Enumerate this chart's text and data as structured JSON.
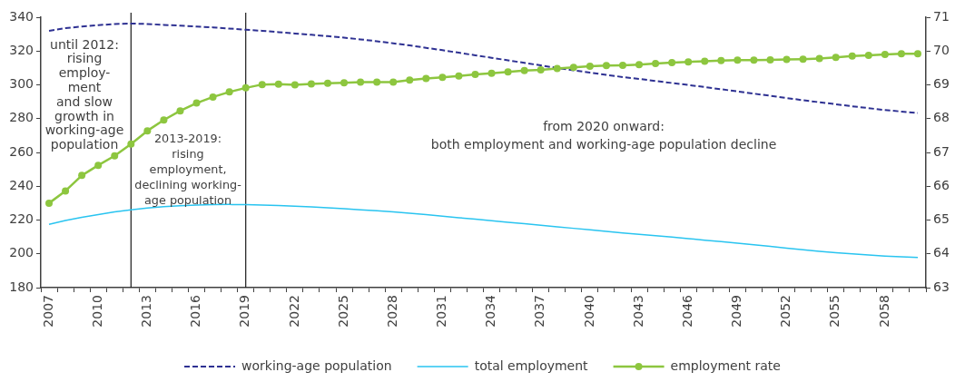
{
  "chart_data": {
    "type": "line",
    "x": [
      2007,
      2008,
      2009,
      2010,
      2011,
      2012,
      2013,
      2014,
      2015,
      2016,
      2017,
      2018,
      2019,
      2020,
      2021,
      2022,
      2023,
      2024,
      2025,
      2026,
      2027,
      2028,
      2029,
      2030,
      2031,
      2032,
      2033,
      2034,
      2035,
      2036,
      2037,
      2038,
      2039,
      2040,
      2041,
      2042,
      2043,
      2044,
      2045,
      2046,
      2047,
      2048,
      2049,
      2050,
      2051,
      2052,
      2053,
      2054,
      2055,
      2056,
      2057,
      2058,
      2059,
      2060
    ],
    "series": [
      {
        "name": "working-age population",
        "color": "#2e3192",
        "line_style": "dashed",
        "marker": "none",
        "values": [
          332.0,
          333.5,
          334.5,
          335.3,
          336.0,
          336.3,
          336.0,
          335.5,
          335.0,
          334.5,
          334.0,
          333.3,
          332.6,
          332.0,
          331.2,
          330.4,
          329.6,
          328.8,
          327.9,
          326.9,
          325.8,
          324.6,
          323.3,
          321.9,
          320.5,
          319.0,
          317.5,
          316.0,
          314.5,
          313.0,
          311.5,
          310.0,
          308.6,
          307.2,
          305.9,
          304.6,
          303.5,
          302.3,
          301.1,
          299.9,
          298.7,
          297.4,
          296.1,
          294.8,
          293.5,
          292.2,
          290.9,
          289.7,
          288.5,
          287.3,
          286.2,
          285.1,
          284.2,
          283.3
        ]
      },
      {
        "name": "total employment",
        "color": "#29c4f0",
        "line_style": "solid",
        "marker": "none",
        "values": [
          217.5,
          219.7,
          221.6,
          223.2,
          224.8,
          226.1,
          227.1,
          227.9,
          228.5,
          228.9,
          229.1,
          229.2,
          229.1,
          228.9,
          228.6,
          228.2,
          227.8,
          227.3,
          226.7,
          226.1,
          225.5,
          224.8,
          224.0,
          223.2,
          222.3,
          221.4,
          220.5,
          219.6,
          218.7,
          217.8,
          216.9,
          216.0,
          215.1,
          214.2,
          213.3,
          212.4,
          211.6,
          210.8,
          209.9,
          209.0,
          208.1,
          207.2,
          206.3,
          205.4,
          204.4,
          203.4,
          202.4,
          201.5,
          200.7,
          200.0,
          199.3,
          198.7,
          198.2,
          197.9
        ]
      },
      {
        "name": "employment rate",
        "color": "#8dc63f",
        "line_style": "solid",
        "marker": "circle",
        "axis": "y2",
        "values": [
          65.5,
          65.86,
          66.32,
          66.62,
          66.9,
          67.25,
          67.64,
          67.96,
          68.23,
          68.46,
          68.64,
          68.79,
          68.91,
          69.01,
          69.02,
          69.0,
          69.03,
          69.05,
          69.06,
          69.08,
          69.08,
          69.08,
          69.14,
          69.19,
          69.22,
          69.26,
          69.31,
          69.34,
          69.38,
          69.42,
          69.44,
          69.48,
          69.52,
          69.55,
          69.57,
          69.58,
          69.6,
          69.63,
          69.66,
          69.68,
          69.7,
          69.72,
          69.73,
          69.73,
          69.74,
          69.75,
          69.76,
          69.78,
          69.81,
          69.85,
          69.87,
          69.9,
          69.92,
          69.92
        ]
      }
    ],
    "xlim": [
      2006.5,
      2060.5
    ],
    "xticks": [
      {
        "value": 2006.5,
        "label": null
      },
      2007,
      {
        "value": 2007.5,
        "label": null
      },
      {
        "value": 2008.5,
        "label": null
      },
      {
        "value": 2009.5,
        "label": null
      },
      2010,
      {
        "value": 2010.5,
        "label": null
      },
      {
        "value": 2011.5,
        "label": null
      },
      {
        "value": 2012.5,
        "label": null
      },
      2013,
      {
        "value": 2013.5,
        "label": null
      },
      {
        "value": 2014.5,
        "label": null
      },
      {
        "value": 2015.5,
        "label": null
      },
      2016,
      {
        "value": 2016.5,
        "label": null
      },
      {
        "value": 2017.5,
        "label": null
      },
      {
        "value": 2018.5,
        "label": null
      },
      2019,
      {
        "value": 2019.5,
        "label": null
      },
      {
        "value": 2020.5,
        "label": null
      },
      {
        "value": 2021.5,
        "label": null
      },
      2022,
      {
        "value": 2022.5,
        "label": null
      },
      {
        "value": 2023.5,
        "label": null
      },
      {
        "value": 2024.5,
        "label": null
      },
      2025,
      {
        "value": 2025.5,
        "label": null
      },
      {
        "value": 2026.5,
        "label": null
      },
      {
        "value": 2027.5,
        "label": null
      },
      2028,
      {
        "value": 2028.5,
        "label": null
      },
      {
        "value": 2029.5,
        "label": null
      },
      {
        "value": 2030.5,
        "label": null
      },
      2031,
      {
        "value": 2031.5,
        "label": null
      },
      {
        "value": 2032.5,
        "label": null
      },
      {
        "value": 2033.5,
        "label": null
      },
      2034,
      {
        "value": 2034.5,
        "label": null
      },
      {
        "value": 2035.5,
        "label": null
      },
      {
        "value": 2036.5,
        "label": null
      },
      2037,
      {
        "value": 2037.5,
        "label": null
      },
      {
        "value": 2038.5,
        "label": null
      },
      {
        "value": 2039.5,
        "label": null
      },
      2040,
      {
        "value": 2040.5,
        "label": null
      },
      {
        "value": 2041.5,
        "label": null
      },
      {
        "value": 2042.5,
        "label": null
      },
      2043,
      {
        "value": 2043.5,
        "label": null
      },
      {
        "value": 2044.5,
        "label": null
      },
      {
        "value": 2045.5,
        "label": null
      },
      2046,
      {
        "value": 2046.5,
        "label": null
      },
      {
        "value": 2047.5,
        "label": null
      },
      {
        "value": 2048.5,
        "label": null
      },
      2049,
      {
        "value": 2049.5,
        "label": null
      },
      {
        "value": 2050.5,
        "label": null
      },
      {
        "value": 2051.5,
        "label": null
      },
      2052,
      {
        "value": 2052.5,
        "label": null
      },
      {
        "value": 2053.5,
        "label": null
      },
      {
        "value": 2054.5,
        "label": null
      },
      2055,
      {
        "value": 2055.5,
        "label": null
      },
      {
        "value": 2056.5,
        "label": null
      },
      {
        "value": 2057.5,
        "label": null
      },
      2058,
      {
        "value": 2058.5,
        "label": null
      },
      {
        "value": 2059.5,
        "label": null
      },
      {
        "value": 2060.5,
        "label": null
      }
    ],
    "ylim": [
      180,
      340
    ],
    "yticks": [
      180,
      200,
      220,
      240,
      260,
      280,
      300,
      320,
      340
    ],
    "y2lim": [
      63,
      71
    ],
    "y2ticks": [
      63,
      64,
      65,
      66,
      67,
      68,
      69,
      70,
      71
    ],
    "ref_lines": [
      {
        "axis": "x",
        "value": 2012,
        "color": "#1a1a1a"
      },
      {
        "axis": "x",
        "value": 2019,
        "color": "#1a1a1a"
      }
    ],
    "annotations": [
      "until 2012:\nrising\nemploy-\nment\nand slow\ngrowth in\nworking-age\npopulation",
      "2013-2019:\nrising\nemployment,\ndeclining working-\nage population",
      "from 2020 onward:\nboth employment and working-age population decline"
    ],
    "legend": "bottom",
    "grid": false
  }
}
